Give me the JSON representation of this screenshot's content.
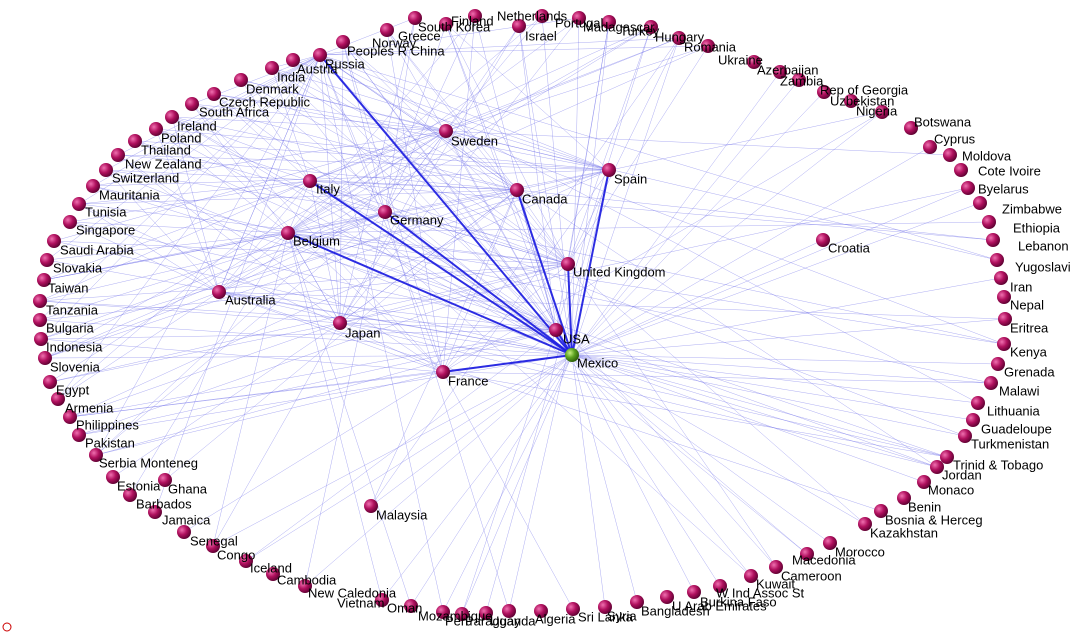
{
  "nodes": [
    {
      "label": "Mexico"
    },
    {
      "label": "USA"
    },
    {
      "label": "Spain"
    },
    {
      "label": "Canada"
    },
    {
      "label": "United Kingdom"
    },
    {
      "label": "Germany"
    },
    {
      "label": "Italy"
    },
    {
      "label": "France"
    },
    {
      "label": "Belgium"
    },
    {
      "label": "Sweden"
    },
    {
      "label": "Japan"
    },
    {
      "label": "Australia"
    },
    {
      "label": "Croatia"
    },
    {
      "label": "Malaysia"
    },
    {
      "label": "Russia"
    },
    {
      "label": "Austria"
    },
    {
      "label": "India"
    },
    {
      "label": "Denmark"
    },
    {
      "label": "Czech Republic"
    },
    {
      "label": "South Africa"
    },
    {
      "label": "Ireland"
    },
    {
      "label": "Poland"
    },
    {
      "label": "Thailand"
    },
    {
      "label": "New Zealand"
    },
    {
      "label": "Switzerland"
    },
    {
      "label": "Mauritania"
    },
    {
      "label": "Tunisia"
    },
    {
      "label": "Singapore"
    },
    {
      "label": "Saudi Arabia"
    },
    {
      "label": "Slovakia"
    },
    {
      "label": "Taiwan"
    },
    {
      "label": "Tanzania"
    },
    {
      "label": "Bulgaria"
    },
    {
      "label": "Indonesia"
    },
    {
      "label": "Slovenia"
    },
    {
      "label": "Egypt"
    },
    {
      "label": "Armenia"
    },
    {
      "label": "Philippines"
    },
    {
      "label": "Pakistan"
    },
    {
      "label": "Serbia Monteneg"
    },
    {
      "label": "Estonia"
    },
    {
      "label": "Ghana"
    },
    {
      "label": "Barbados"
    },
    {
      "label": "Jamaica"
    },
    {
      "label": "Senegal"
    },
    {
      "label": "Congo"
    },
    {
      "label": "Iceland"
    },
    {
      "label": "Cambodia"
    },
    {
      "label": "New Caledonia"
    },
    {
      "label": "Vietnam"
    },
    {
      "label": "Oman"
    },
    {
      "label": "Mozambique"
    },
    {
      "label": "Peru"
    },
    {
      "label": "Paraguay"
    },
    {
      "label": "Uganda"
    },
    {
      "label": "Algeria"
    },
    {
      "label": "Sri Lanka"
    },
    {
      "label": "Syria"
    },
    {
      "label": "Bangladesh"
    },
    {
      "label": "U Arab Emirates"
    },
    {
      "label": "Burkina Faso"
    },
    {
      "label": "W Ind Assoc St"
    },
    {
      "label": "Kuwait"
    },
    {
      "label": "Cameroon"
    },
    {
      "label": "Macedonia"
    },
    {
      "label": "Morocco"
    },
    {
      "label": "Kazakhstan"
    },
    {
      "label": "Bosnia & Herceg"
    },
    {
      "label": "Benin"
    },
    {
      "label": "Monaco"
    },
    {
      "label": "Jordan"
    },
    {
      "label": "Trinid & Tobago"
    },
    {
      "label": "Turkmenistan"
    },
    {
      "label": "Guadeloupe"
    },
    {
      "label": "Lithuania"
    },
    {
      "label": "Malawi"
    },
    {
      "label": "Grenada"
    },
    {
      "label": "Kenya"
    },
    {
      "label": "Eritrea"
    },
    {
      "label": "Nepal"
    },
    {
      "label": "Iran"
    },
    {
      "label": "Yugoslavia"
    },
    {
      "label": "Lebanon"
    },
    {
      "label": "Ethiopia"
    },
    {
      "label": "Zimbabwe"
    },
    {
      "label": "Byelarus"
    },
    {
      "label": "Cote Ivoire"
    },
    {
      "label": "Moldova"
    },
    {
      "label": "Cyprus"
    },
    {
      "label": "Botswana"
    },
    {
      "label": "Nigeria"
    },
    {
      "label": "Uzbekistan"
    },
    {
      "label": "Rep of Georgia"
    },
    {
      "label": "Zambia"
    },
    {
      "label": "Azerbaijan"
    },
    {
      "label": "Ukraine"
    },
    {
      "label": "Romania"
    },
    {
      "label": "Hungary"
    },
    {
      "label": "Turkey"
    },
    {
      "label": "Madagascar"
    },
    {
      "label": "Portugal"
    },
    {
      "label": "Israel"
    },
    {
      "label": "Netherlands"
    },
    {
      "label": "Finland"
    },
    {
      "label": "South Korea"
    },
    {
      "label": "Greece"
    },
    {
      "label": "Norway"
    },
    {
      "label": "Peoples R China"
    }
  ]
}
